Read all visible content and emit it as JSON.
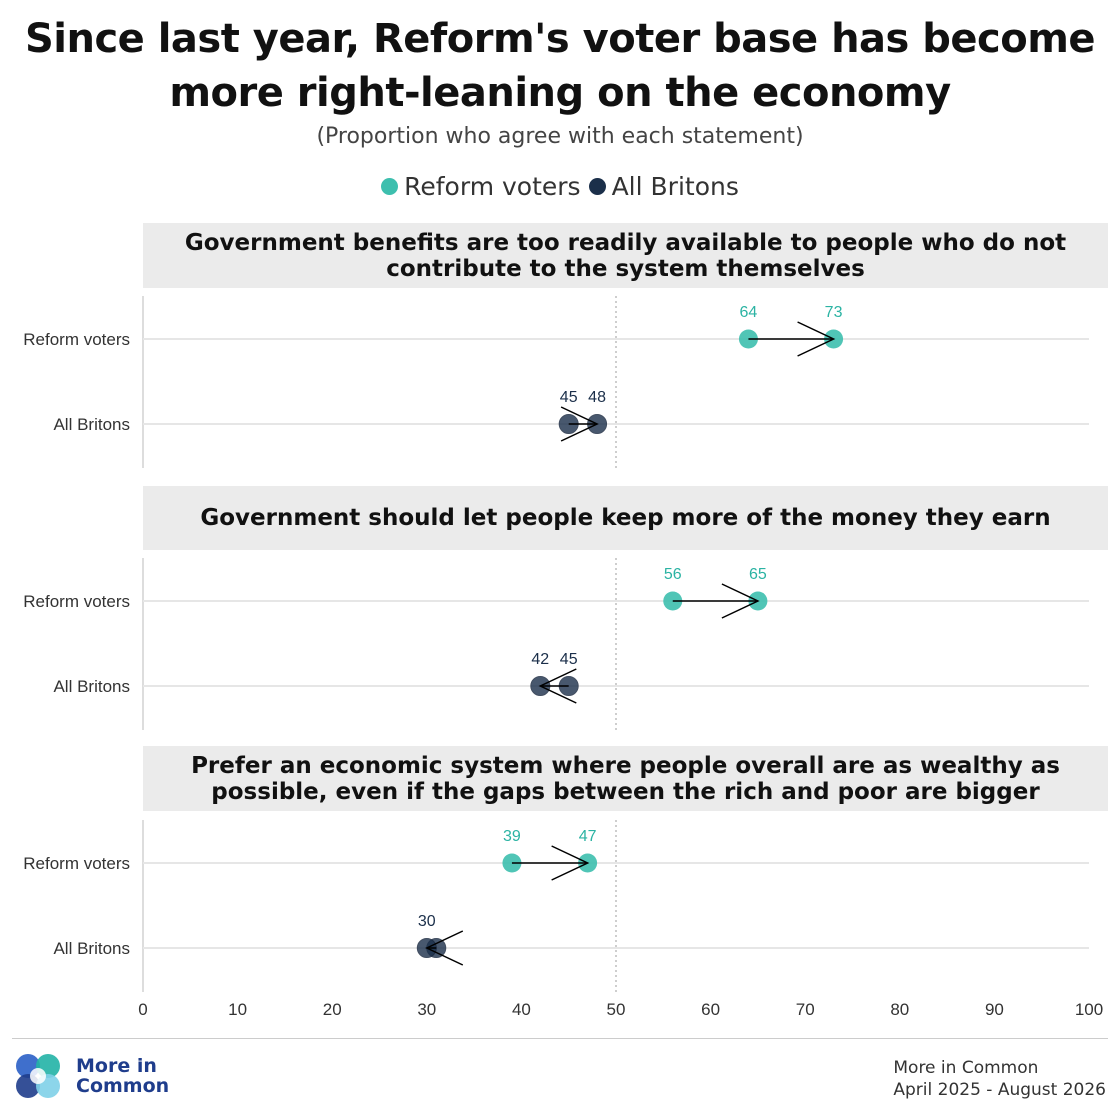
{
  "title_line1": "Since last year, Reform's voter base has become",
  "title_line2": "more right-leaning on the economy",
  "subtitle": "(Proportion who agree with each statement)",
  "legend": [
    {
      "label": "Reform voters",
      "color": "#3dbfae"
    },
    {
      "label": "All Britons",
      "color": "#1b2f4a"
    }
  ],
  "colors": {
    "reform": "#3dbfae",
    "britons": "#1b2f4a",
    "reform_label": "#2bb3a3",
    "britons_label": "#1b2f4a",
    "panel_bg": "#ebebeb",
    "grid": "#e6e6e6"
  },
  "chart_data": {
    "type": "dumbbell",
    "x_axis": {
      "min": 0,
      "max": 100,
      "ticks": [
        0,
        10,
        20,
        30,
        40,
        50,
        60,
        70,
        80,
        90,
        100
      ],
      "reference_line": 50
    },
    "row_labels": [
      "Reform voters",
      "All Britons"
    ],
    "panels": [
      {
        "title_lines": [
          "Government benefits are too readily available to people who do not",
          "contribute to the system themselves"
        ],
        "rows": [
          {
            "group": "Reform voters",
            "from": 64,
            "to": 73,
            "labels": [
              "64",
              "73"
            ]
          },
          {
            "group": "All Britons",
            "from": 45,
            "to": 48,
            "labels": [
              "45",
              "48"
            ]
          }
        ]
      },
      {
        "title_lines": [
          "Government should let people keep more of the money they earn"
        ],
        "rows": [
          {
            "group": "Reform voters",
            "from": 56,
            "to": 65,
            "labels": [
              "56",
              "65"
            ]
          },
          {
            "group": "All Britons",
            "from": 45,
            "to": 42,
            "labels": [
              "42",
              "45"
            ]
          }
        ]
      },
      {
        "title_lines": [
          "Prefer an economic system where people overall are as wealthy as",
          "possible, even if the gaps between the rich and poor are bigger"
        ],
        "rows": [
          {
            "group": "Reform voters",
            "from": 39,
            "to": 47,
            "labels": [
              "39",
              "47"
            ]
          },
          {
            "group": "All Britons",
            "from": 31,
            "to": 30,
            "labels": [
              "30"
            ]
          }
        ]
      }
    ]
  },
  "logo": {
    "line1": "More in",
    "line2": "Common",
    "colors": [
      "#2a5fc7",
      "#22b3a6",
      "#1f3d8c",
      "#7fd0e8"
    ]
  },
  "source": {
    "line1": "More in Common",
    "line2": "April 2025 - August 2026"
  }
}
